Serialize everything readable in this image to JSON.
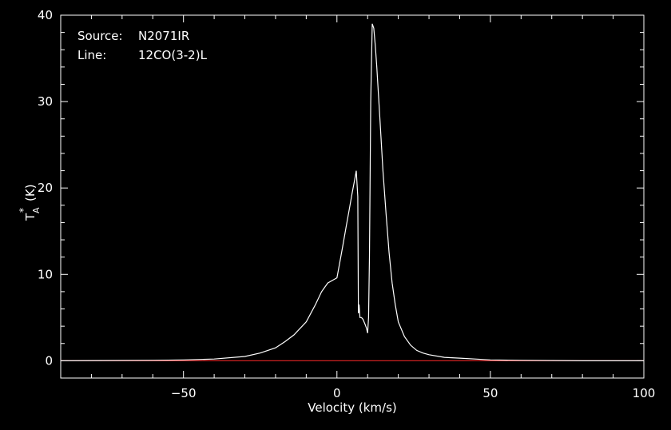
{
  "info": {
    "source_key": "Source:",
    "source_value": "N2071IR",
    "line_key": "Line:",
    "line_value": "12CO(3-2)L"
  },
  "chart_data": {
    "type": "line",
    "xlabel": "Velocity (km/s)",
    "ylabel_main": "T",
    "ylabel_sub": "A",
    "ylabel_sup": "*",
    "ylabel_unit": "(K)",
    "xlim": [
      -90,
      100
    ],
    "ylim": [
      -2,
      40
    ],
    "x_ticks": [
      -50,
      0,
      50,
      100
    ],
    "x_tick_labels": [
      "−50",
      "0",
      "50",
      "100"
    ],
    "y_ticks": [
      0,
      10,
      20,
      30,
      40
    ],
    "y_tick_labels": [
      "0",
      "10",
      "20",
      "30",
      "40"
    ],
    "grid": false,
    "colors": {
      "background": "#000000",
      "axes": "#ffffff",
      "spectrum": "#ffffff",
      "baseline": "#cc2222"
    },
    "baseline_y": 0,
    "series": [
      {
        "x": [
          -90,
          -60,
          -50,
          -40,
          -30,
          -25,
          -20,
          -17,
          -14,
          -10,
          -7,
          -5,
          -3,
          -1.5,
          0,
          1,
          2,
          3,
          4,
          5,
          5.8,
          6.3,
          6.8,
          7.0,
          7.2,
          7.5,
          8,
          8.5,
          9.2,
          9.6,
          10.0,
          10.3,
          10.6,
          11.0,
          11.5,
          12.0,
          12.5,
          13,
          14,
          15,
          16,
          17,
          18,
          19,
          20,
          22,
          24,
          26,
          28,
          30,
          35,
          40,
          45,
          50,
          60,
          80,
          100
        ],
        "y": [
          0,
          0.05,
          0.1,
          0.2,
          0.5,
          0.9,
          1.5,
          2.2,
          3.0,
          4.5,
          6.5,
          8.0,
          9.0,
          9.3,
          9.6,
          11.5,
          13.5,
          15.5,
          17.5,
          19.5,
          21.0,
          22.0,
          19.0,
          5.5,
          6.5,
          5.0,
          5.0,
          4.8,
          4.2,
          3.8,
          3.2,
          5.0,
          12.0,
          30.0,
          39.0,
          38.5,
          36.5,
          34.0,
          28.0,
          22.0,
          17.0,
          12.5,
          9.0,
          6.5,
          4.5,
          2.8,
          1.8,
          1.2,
          0.9,
          0.7,
          0.4,
          0.3,
          0.2,
          0.1,
          0.05,
          0,
          0
        ]
      }
    ]
  }
}
